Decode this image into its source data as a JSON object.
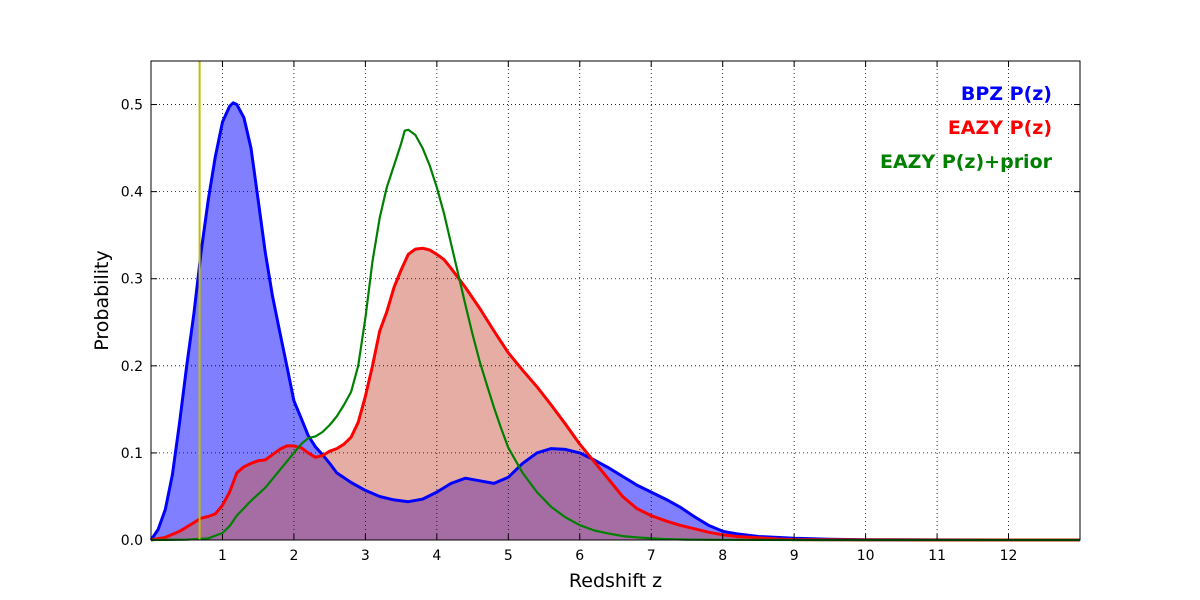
{
  "chart_data": {
    "type": "area",
    "title": "",
    "xlabel": "Redshift z",
    "ylabel": "Probability",
    "xlim": [
      0,
      13
    ],
    "ylim": [
      0,
      0.55
    ],
    "xticks": [
      1,
      2,
      3,
      4,
      5,
      6,
      7,
      8,
      9,
      10,
      11,
      12
    ],
    "yticks": [
      0.0,
      0.1,
      0.2,
      0.3,
      0.4,
      0.5
    ],
    "ytick_labels": [
      "0.0",
      "0.1",
      "0.2",
      "0.3",
      "0.4",
      "0.5"
    ],
    "grid": true,
    "legend_position": "top-right",
    "vline": {
      "x": 0.68,
      "color": "#bfbf00"
    },
    "series": [
      {
        "name": "BPZ P(z)",
        "color": "#0000ff",
        "fill": "#0000ff",
        "fill_opacity": 0.5,
        "x": [
          0,
          0.1,
          0.2,
          0.3,
          0.4,
          0.5,
          0.6,
          0.7,
          0.8,
          0.9,
          1.0,
          1.1,
          1.15,
          1.2,
          1.3,
          1.4,
          1.5,
          1.6,
          1.7,
          1.8,
          1.9,
          2.0,
          2.1,
          2.2,
          2.3,
          2.4,
          2.5,
          2.6,
          2.8,
          3.0,
          3.2,
          3.4,
          3.6,
          3.8,
          4.0,
          4.2,
          4.4,
          4.6,
          4.8,
          5.0,
          5.2,
          5.4,
          5.6,
          5.8,
          6.0,
          6.2,
          6.4,
          6.6,
          6.8,
          7.0,
          7.2,
          7.4,
          7.6,
          7.8,
          8.0,
          8.2,
          8.5,
          9.0,
          9.5,
          10,
          11,
          12,
          13
        ],
        "y": [
          0.0,
          0.012,
          0.035,
          0.075,
          0.135,
          0.2,
          0.26,
          0.33,
          0.39,
          0.44,
          0.48,
          0.498,
          0.502,
          0.5,
          0.485,
          0.45,
          0.39,
          0.33,
          0.28,
          0.24,
          0.2,
          0.16,
          0.14,
          0.12,
          0.107,
          0.098,
          0.088,
          0.077,
          0.066,
          0.057,
          0.05,
          0.046,
          0.044,
          0.047,
          0.055,
          0.065,
          0.071,
          0.068,
          0.065,
          0.072,
          0.088,
          0.1,
          0.105,
          0.104,
          0.1,
          0.092,
          0.083,
          0.073,
          0.063,
          0.055,
          0.047,
          0.038,
          0.027,
          0.017,
          0.01,
          0.007,
          0.004,
          0.002,
          0.0008,
          0.0003,
          0.0001,
          0.0,
          0.0
        ]
      },
      {
        "name": "EAZY P(z)",
        "color": "#ff0000",
        "fill": "#cd5c4b",
        "fill_opacity": 0.5,
        "x": [
          0,
          0.2,
          0.4,
          0.6,
          0.7,
          0.8,
          0.9,
          1.0,
          1.1,
          1.2,
          1.3,
          1.4,
          1.5,
          1.6,
          1.7,
          1.8,
          1.9,
          2.0,
          2.1,
          2.2,
          2.3,
          2.4,
          2.5,
          2.6,
          2.7,
          2.8,
          2.9,
          3.0,
          3.1,
          3.2,
          3.3,
          3.4,
          3.5,
          3.6,
          3.7,
          3.8,
          3.9,
          4.0,
          4.1,
          4.2,
          4.4,
          4.6,
          4.8,
          5.0,
          5.2,
          5.4,
          5.6,
          5.8,
          6.0,
          6.2,
          6.4,
          6.6,
          6.8,
          7.0,
          7.2,
          7.4,
          7.6,
          7.8,
          8.0,
          8.2,
          8.4,
          8.6,
          8.8,
          9.0,
          9.5,
          10,
          11,
          12,
          13
        ],
        "y": [
          0.0,
          0.003,
          0.01,
          0.02,
          0.025,
          0.027,
          0.03,
          0.04,
          0.055,
          0.077,
          0.084,
          0.088,
          0.091,
          0.092,
          0.098,
          0.104,
          0.108,
          0.108,
          0.106,
          0.1,
          0.095,
          0.097,
          0.102,
          0.105,
          0.11,
          0.118,
          0.135,
          0.165,
          0.2,
          0.24,
          0.262,
          0.29,
          0.31,
          0.328,
          0.334,
          0.335,
          0.333,
          0.328,
          0.322,
          0.312,
          0.29,
          0.266,
          0.24,
          0.215,
          0.195,
          0.176,
          0.155,
          0.133,
          0.11,
          0.09,
          0.07,
          0.05,
          0.036,
          0.028,
          0.022,
          0.017,
          0.013,
          0.009,
          0.006,
          0.004,
          0.003,
          0.002,
          0.001,
          0.0005,
          0.0002,
          0.0001,
          0.0,
          0.0,
          0.0
        ]
      },
      {
        "name": "EAZY P(z)+prior",
        "color": "#008000",
        "fill": null,
        "fill_opacity": 0,
        "x": [
          0,
          0.5,
          0.8,
          1.0,
          1.1,
          1.2,
          1.4,
          1.6,
          1.8,
          2.0,
          2.1,
          2.2,
          2.3,
          2.4,
          2.5,
          2.6,
          2.7,
          2.8,
          2.9,
          3.0,
          3.1,
          3.2,
          3.3,
          3.4,
          3.5,
          3.55,
          3.6,
          3.7,
          3.8,
          3.9,
          4.0,
          4.1,
          4.2,
          4.3,
          4.4,
          4.5,
          4.6,
          4.7,
          4.8,
          4.9,
          5.0,
          5.2,
          5.4,
          5.6,
          5.8,
          6.0,
          6.2,
          6.4,
          6.6,
          6.8,
          7.0,
          7.2,
          7.5,
          8.0,
          8.5,
          9.0,
          10,
          11,
          12,
          13
        ],
        "y": [
          0.0,
          0.0005,
          0.002,
          0.008,
          0.016,
          0.028,
          0.045,
          0.06,
          0.08,
          0.1,
          0.11,
          0.117,
          0.119,
          0.124,
          0.132,
          0.142,
          0.155,
          0.17,
          0.2,
          0.255,
          0.32,
          0.37,
          0.405,
          0.43,
          0.455,
          0.47,
          0.471,
          0.465,
          0.45,
          0.43,
          0.405,
          0.375,
          0.34,
          0.305,
          0.27,
          0.236,
          0.205,
          0.178,
          0.152,
          0.128,
          0.106,
          0.077,
          0.055,
          0.038,
          0.026,
          0.017,
          0.011,
          0.0075,
          0.0045,
          0.003,
          0.002,
          0.001,
          0.0005,
          0.0002,
          0.0001,
          0.0,
          0.0,
          0.0,
          0.0,
          0.0
        ]
      }
    ]
  }
}
